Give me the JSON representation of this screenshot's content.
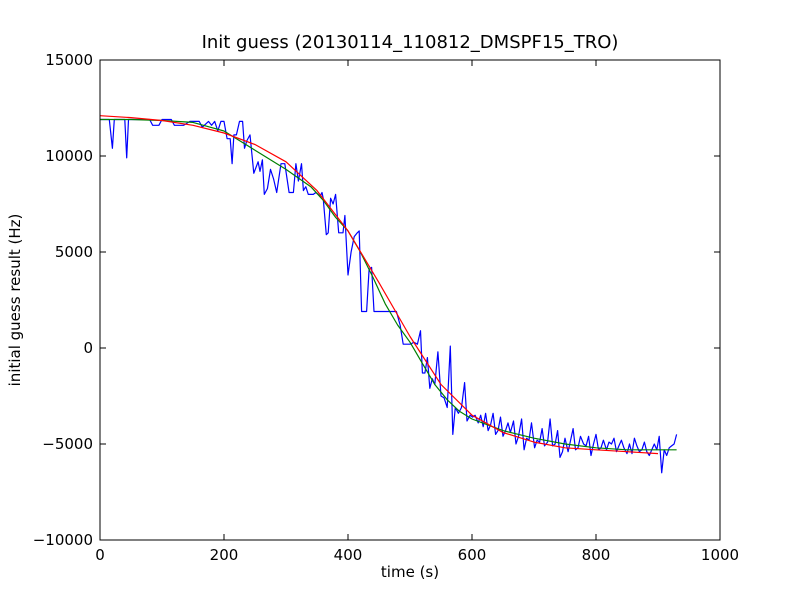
{
  "chart_data": {
    "type": "line",
    "title": "Init guess (20130114_110812_DMSPF15_TRO)",
    "xlabel": "time (s)",
    "ylabel": "initial guess result (Hz)",
    "xlim": [
      0,
      1000
    ],
    "ylim": [
      -10000,
      15000
    ],
    "xticks": [
      0,
      200,
      400,
      600,
      800,
      1000
    ],
    "yticks": [
      -10000,
      -5000,
      0,
      5000,
      10000,
      15000
    ],
    "xtick_labels": [
      "0",
      "200",
      "400",
      "600",
      "800",
      "1000"
    ],
    "ytick_labels": [
      "−10000",
      "−5000",
      "0",
      "5000",
      "10000",
      "15000"
    ],
    "grid": false,
    "series": [
      {
        "color": "#0000ff",
        "points": [
          [
            0,
            11900
          ],
          [
            10,
            11900
          ],
          [
            15,
            11900
          ],
          [
            20,
            10400
          ],
          [
            23,
            11900
          ],
          [
            35,
            11900
          ],
          [
            40,
            11900
          ],
          [
            43,
            9900
          ],
          [
            46,
            11900
          ],
          [
            60,
            11900
          ],
          [
            80,
            11900
          ],
          [
            85,
            11600
          ],
          [
            95,
            11600
          ],
          [
            100,
            11900
          ],
          [
            115,
            11900
          ],
          [
            120,
            11600
          ],
          [
            135,
            11600
          ],
          [
            145,
            11800
          ],
          [
            160,
            11800
          ],
          [
            165,
            11500
          ],
          [
            175,
            11800
          ],
          [
            180,
            11600
          ],
          [
            185,
            11800
          ],
          [
            190,
            11300
          ],
          [
            195,
            11800
          ],
          [
            200,
            11800
          ],
          [
            205,
            10900
          ],
          [
            210,
            10900
          ],
          [
            213,
            9600
          ],
          [
            216,
            11100
          ],
          [
            220,
            11100
          ],
          [
            225,
            11800
          ],
          [
            230,
            11800
          ],
          [
            233,
            10400
          ],
          [
            237,
            10800
          ],
          [
            242,
            11100
          ],
          [
            248,
            9100
          ],
          [
            255,
            9700
          ],
          [
            258,
            9200
          ],
          [
            262,
            9800
          ],
          [
            265,
            8000
          ],
          [
            270,
            8300
          ],
          [
            275,
            9300
          ],
          [
            280,
            8800
          ],
          [
            285,
            8100
          ],
          [
            292,
            9600
          ],
          [
            298,
            9600
          ],
          [
            305,
            8100
          ],
          [
            312,
            8100
          ],
          [
            316,
            9600
          ],
          [
            320,
            8700
          ],
          [
            325,
            9600
          ],
          [
            328,
            8200
          ],
          [
            332,
            8400
          ],
          [
            336,
            8000
          ],
          [
            340,
            8000
          ],
          [
            344,
            8000
          ],
          [
            348,
            8100
          ],
          [
            352,
            8000
          ],
          [
            355,
            7900
          ],
          [
            358,
            8100
          ],
          [
            360,
            7800
          ],
          [
            365,
            5900
          ],
          [
            368,
            6000
          ],
          [
            372,
            7800
          ],
          [
            376,
            7500
          ],
          [
            380,
            8000
          ],
          [
            385,
            6000
          ],
          [
            392,
            6000
          ],
          [
            395,
            6900
          ],
          [
            400,
            3800
          ],
          [
            405,
            5000
          ],
          [
            410,
            5800
          ],
          [
            415,
            6000
          ],
          [
            418,
            6100
          ],
          [
            422,
            1900
          ],
          [
            430,
            1900
          ],
          [
            434,
            4100
          ],
          [
            438,
            4200
          ],
          [
            442,
            1900
          ],
          [
            450,
            1900
          ],
          [
            460,
            1900
          ],
          [
            470,
            1900
          ],
          [
            478,
            1900
          ],
          [
            484,
            1200
          ],
          [
            489,
            200
          ],
          [
            495,
            200
          ],
          [
            501,
            200
          ],
          [
            506,
            300
          ],
          [
            512,
            200
          ],
          [
            517,
            900
          ],
          [
            520,
            -1300
          ],
          [
            524,
            -1300
          ],
          [
            528,
            -500
          ],
          [
            532,
            -2100
          ],
          [
            536,
            -1600
          ],
          [
            540,
            -1900
          ],
          [
            545,
            -200
          ],
          [
            550,
            -2500
          ],
          [
            555,
            -2600
          ],
          [
            560,
            -3100
          ],
          [
            565,
            100
          ],
          [
            569,
            -4500
          ],
          [
            573,
            -3100
          ],
          [
            578,
            -3400
          ],
          [
            583,
            -3100
          ],
          [
            588,
            -1800
          ],
          [
            592,
            -3800
          ],
          [
            597,
            -3500
          ],
          [
            601,
            -3600
          ],
          [
            605,
            -3500
          ],
          [
            610,
            -3900
          ],
          [
            614,
            -3500
          ],
          [
            618,
            -4100
          ],
          [
            622,
            -3400
          ],
          [
            626,
            -4300
          ],
          [
            630,
            -4000
          ],
          [
            634,
            -3400
          ],
          [
            638,
            -4500
          ],
          [
            642,
            -4300
          ],
          [
            646,
            -3600
          ],
          [
            650,
            -4600
          ],
          [
            654,
            -4300
          ],
          [
            658,
            -3900
          ],
          [
            662,
            -4400
          ],
          [
            667,
            -3800
          ],
          [
            671,
            -5000
          ],
          [
            675,
            -4600
          ],
          [
            680,
            -3700
          ],
          [
            684,
            -5300
          ],
          [
            688,
            -4700
          ],
          [
            692,
            -4800
          ],
          [
            696,
            -3900
          ],
          [
            701,
            -5200
          ],
          [
            705,
            -4800
          ],
          [
            709,
            -4900
          ],
          [
            713,
            -4200
          ],
          [
            717,
            -5100
          ],
          [
            722,
            -4900
          ],
          [
            726,
            -3700
          ],
          [
            730,
            -5100
          ],
          [
            734,
            -5000
          ],
          [
            738,
            -4300
          ],
          [
            742,
            -5700
          ],
          [
            746,
            -5400
          ],
          [
            750,
            -4700
          ],
          [
            755,
            -5400
          ],
          [
            759,
            -4800
          ],
          [
            763,
            -4200
          ],
          [
            767,
            -5300
          ],
          [
            771,
            -5200
          ],
          [
            775,
            -4600
          ],
          [
            780,
            -5000
          ],
          [
            784,
            -5100
          ],
          [
            788,
            -4600
          ],
          [
            792,
            -5600
          ],
          [
            796,
            -5000
          ],
          [
            800,
            -4500
          ],
          [
            804,
            -5300
          ],
          [
            808,
            -5200
          ],
          [
            812,
            -4800
          ],
          [
            817,
            -5300
          ],
          [
            821,
            -4900
          ],
          [
            825,
            -5000
          ],
          [
            829,
            -4700
          ],
          [
            833,
            -5400
          ],
          [
            837,
            -5100
          ],
          [
            841,
            -4800
          ],
          [
            845,
            -5200
          ],
          [
            850,
            -5500
          ],
          [
            854,
            -5000
          ],
          [
            858,
            -5500
          ],
          [
            862,
            -4700
          ],
          [
            866,
            -5100
          ],
          [
            870,
            -5400
          ],
          [
            874,
            -5300
          ],
          [
            878,
            -4900
          ],
          [
            882,
            -5400
          ],
          [
            886,
            -5600
          ],
          [
            890,
            -5300
          ],
          [
            894,
            -5000
          ],
          [
            898,
            -5300
          ],
          [
            902,
            -4600
          ],
          [
            906,
            -6500
          ],
          [
            910,
            -5300
          ],
          [
            914,
            -5600
          ],
          [
            918,
            -5200
          ],
          [
            922,
            -5100
          ],
          [
            926,
            -5000
          ],
          [
            930,
            -4500
          ]
        ]
      },
      {
        "color": "#008000",
        "points": [
          [
            0,
            11900
          ],
          [
            50,
            11900
          ],
          [
            100,
            11850
          ],
          [
            150,
            11750
          ],
          [
            200,
            11300
          ],
          [
            250,
            10300
          ],
          [
            300,
            9300
          ],
          [
            340,
            8400
          ],
          [
            360,
            7700
          ],
          [
            380,
            6800
          ],
          [
            400,
            6100
          ],
          [
            420,
            5000
          ],
          [
            440,
            3700
          ],
          [
            460,
            2300
          ],
          [
            480,
            1200
          ],
          [
            500,
            300
          ],
          [
            520,
            -800
          ],
          [
            540,
            -1900
          ],
          [
            560,
            -2700
          ],
          [
            580,
            -3300
          ],
          [
            600,
            -3700
          ],
          [
            625,
            -4000
          ],
          [
            650,
            -4300
          ],
          [
            700,
            -4700
          ],
          [
            750,
            -5000
          ],
          [
            800,
            -5200
          ],
          [
            850,
            -5300
          ],
          [
            900,
            -5300
          ],
          [
            930,
            -5300
          ]
        ]
      },
      {
        "color": "#ff0000",
        "points": [
          [
            0,
            12100
          ],
          [
            50,
            12000
          ],
          [
            100,
            11850
          ],
          [
            150,
            11600
          ],
          [
            200,
            11200
          ],
          [
            250,
            10600
          ],
          [
            300,
            9700
          ],
          [
            350,
            8200
          ],
          [
            400,
            6100
          ],
          [
            450,
            3400
          ],
          [
            500,
            600
          ],
          [
            550,
            -1900
          ],
          [
            600,
            -3500
          ],
          [
            650,
            -4400
          ],
          [
            700,
            -4900
          ],
          [
            750,
            -5200
          ],
          [
            800,
            -5300
          ],
          [
            850,
            -5400
          ],
          [
            900,
            -5500
          ]
        ]
      }
    ]
  }
}
